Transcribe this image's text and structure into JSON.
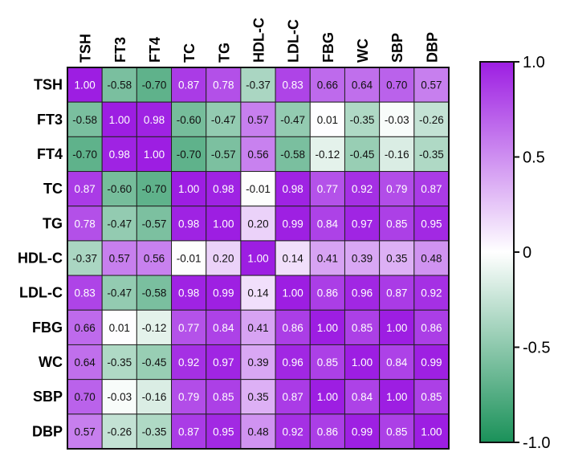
{
  "chart_data": {
    "type": "heatmap",
    "title": "",
    "xlabel": "",
    "ylabel": "",
    "variables": [
      "TSH",
      "FT3",
      "FT4",
      "TC",
      "TG",
      "HDL-C",
      "LDL-C",
      "FBG",
      "WC",
      "SBP",
      "DBP"
    ],
    "matrix": [
      [
        1.0,
        -0.58,
        -0.7,
        0.87,
        0.78,
        -0.37,
        0.83,
        0.66,
        0.64,
        0.7,
        0.57
      ],
      [
        -0.58,
        1.0,
        0.98,
        -0.6,
        -0.47,
        0.57,
        -0.47,
        0.01,
        -0.35,
        -0.03,
        -0.26
      ],
      [
        -0.7,
        0.98,
        1.0,
        -0.7,
        -0.57,
        0.56,
        -0.58,
        -0.12,
        -0.45,
        -0.16,
        -0.35
      ],
      [
        0.87,
        -0.6,
        -0.7,
        1.0,
        0.98,
        -0.01,
        0.98,
        0.77,
        0.92,
        0.79,
        0.87
      ],
      [
        0.78,
        -0.47,
        -0.57,
        0.98,
        1.0,
        0.2,
        0.99,
        0.84,
        0.97,
        0.85,
        0.95
      ],
      [
        -0.37,
        0.57,
        0.56,
        -0.01,
        0.2,
        1.0,
        0.14,
        0.41,
        0.39,
        0.35,
        0.48
      ],
      [
        0.83,
        -0.47,
        -0.58,
        0.98,
        0.99,
        0.14,
        1.0,
        0.86,
        0.96,
        0.87,
        0.92
      ],
      [
        0.66,
        0.01,
        -0.12,
        0.77,
        0.84,
        0.41,
        0.86,
        1.0,
        0.85,
        1.0,
        0.86
      ],
      [
        0.64,
        -0.35,
        -0.45,
        0.92,
        0.97,
        0.39,
        0.96,
        0.85,
        1.0,
        0.84,
        0.99
      ],
      [
        0.7,
        -0.03,
        -0.16,
        0.79,
        0.85,
        0.35,
        0.87,
        1.0,
        0.84,
        1.0,
        0.85
      ],
      [
        0.57,
        -0.26,
        -0.35,
        0.87,
        0.95,
        0.48,
        0.92,
        0.86,
        0.99,
        0.85,
        1.0
      ]
    ],
    "value_range": [
      -1.0,
      1.0
    ],
    "colormap": {
      "low": "#1a9159",
      "mid": "#ffffff",
      "high": "#9d1ee2"
    },
    "colorbar": {
      "ticks": [
        1.0,
        0.5,
        0,
        -0.5,
        -1.0
      ],
      "tick_labels": [
        "1.0",
        "0.5",
        "0",
        "-0.5",
        "-1.0"
      ]
    },
    "legend_placement": "right",
    "grid": true
  }
}
